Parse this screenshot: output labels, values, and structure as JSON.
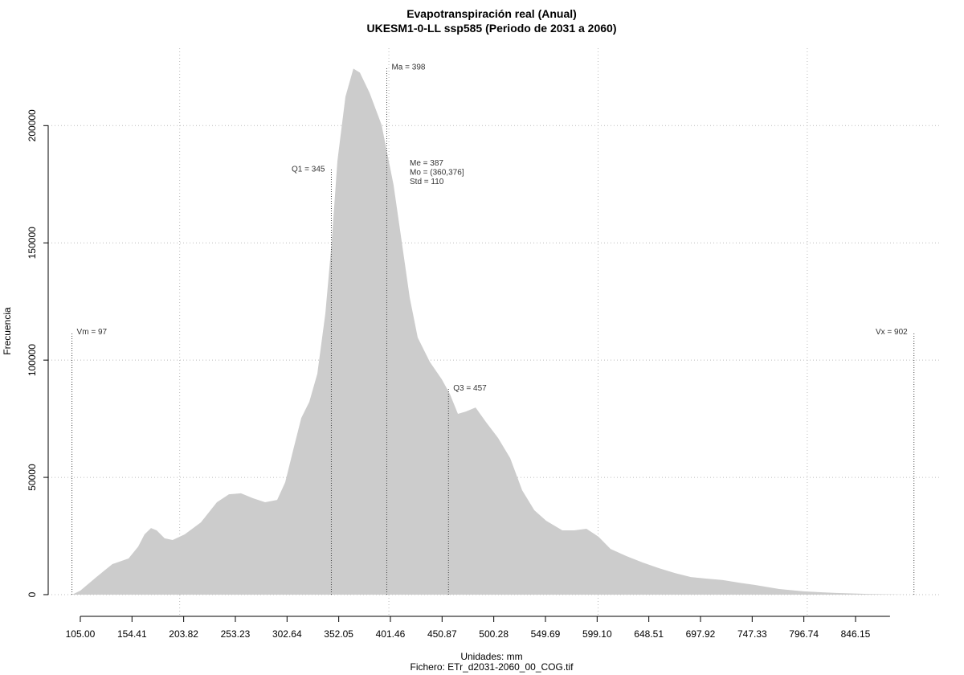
{
  "chart_data": {
    "type": "area",
    "title": "Evapotranspiración real (Anual)",
    "subtitle": "UKESM1-0-LL ssp585 (Periodo de 2031 a 2060)",
    "x_label": "Unidades: mm",
    "caption": "Fichero: ETr_d2031-2060_00_COG.tif",
    "y_label": "Frecuencia",
    "color": "#cccccc",
    "x": [
      97.3,
      105.0,
      120.4,
      135.7,
      151.1,
      160.3,
      166.4,
      172.6,
      178.0,
      185.6,
      193.3,
      204.8,
      220.2,
      235.6,
      247.1,
      258.6,
      270.1,
      281.7,
      293.2,
      300.9,
      308.5,
      316.2,
      323.9,
      331.6,
      339.3,
      345.4,
      350.8,
      358.5,
      366.1,
      372.3,
      381.5,
      393.0,
      404.5,
      412.2,
      419.9,
      427.6,
      439.1,
      450.6,
      458.3,
      466.0,
      473.7,
      482.9,
      492.9,
      504.4,
      516.0,
      527.4,
      539.0,
      550.5,
      565.8,
      577.3,
      588.9,
      600.4,
      611.9,
      627.3,
      642.6,
      658.0,
      673.4,
      688.7,
      704.1,
      719.4,
      734.8,
      750.2,
      773.2,
      796.2,
      827.0,
      857.7,
      896.1
    ],
    "values": [
      0,
      1700,
      7500,
      13000,
      15400,
      20500,
      25700,
      28400,
      27400,
      24000,
      23300,
      25700,
      30800,
      39400,
      42800,
      43200,
      41100,
      39400,
      40400,
      47900,
      61600,
      75300,
      82200,
      94200,
      119900,
      150700,
      184900,
      212300,
      224300,
      222600,
      214000,
      200300,
      174700,
      150700,
      126700,
      109600,
      99300,
      91800,
      85600,
      77100,
      78100,
      79800,
      73600,
      66800,
      58200,
      44500,
      36000,
      31500,
      27400,
      27400,
      28100,
      24700,
      19500,
      16400,
      13700,
      11300,
      9200,
      7500,
      6800,
      6200,
      5100,
      4100,
      2400,
      1400,
      700,
      300,
      0
    ],
    "xlim": [
      74.3,
      926.8
    ],
    "ylim": [
      -9600,
      233000
    ],
    "xticks": [
      {
        "value": 105,
        "label": "105.00"
      },
      154.41,
      203.82,
      253.23,
      302.64,
      352.05,
      401.46,
      450.87,
      500.28,
      549.69,
      {
        "value": 599.1,
        "label": "599.10"
      },
      648.51,
      697.92,
      747.33,
      796.74,
      846.15
    ],
    "xgrid": [
      200,
      400,
      600,
      800
    ],
    "yticks": [
      0,
      50000,
      100000,
      150000,
      200000
    ],
    "grid": true,
    "annotations": [
      {
        "label": "Vm = 97",
        "x": 97,
        "y": 112000
      },
      {
        "label": "Q1 = 345",
        "x": 345,
        "y": 181500
      },
      {
        "label": "Ma = 398",
        "x": 398,
        "y": 225000
      },
      {
        "label": "Q3 = 457",
        "x": 457,
        "y": 88000
      },
      {
        "label": "Vx = 902",
        "x": 902,
        "y": 112000
      }
    ],
    "stats_text": [
      "Me = 387",
      "Mo = (360,376]",
      "Std = 110"
    ]
  }
}
